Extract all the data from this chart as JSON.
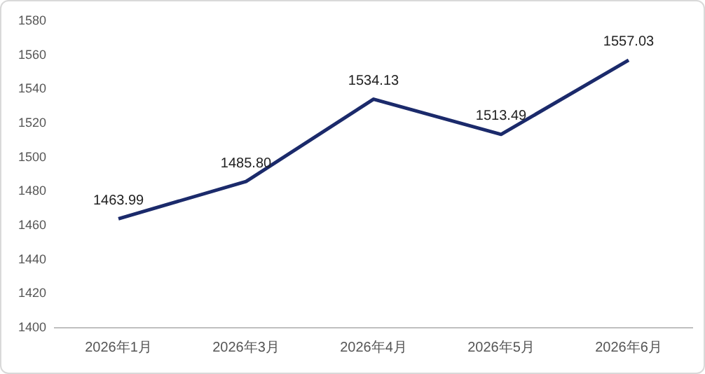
{
  "chart_data": {
    "type": "line",
    "categories": [
      "2026年1月",
      "2026年3月",
      "2026年4月",
      "2026年5月",
      "2026年6月"
    ],
    "series": [
      {
        "color": "#1b2a6b",
        "values": [
          1463.99,
          1485.8,
          1534.13,
          1513.49,
          1557.03
        ],
        "value_labels": [
          "1463.99",
          "1485.80",
          "1534.13",
          "1513.49",
          "1557.03"
        ]
      }
    ],
    "ylim": [
      1400,
      1580
    ],
    "yticks": [
      1400,
      1420,
      1440,
      1460,
      1480,
      1500,
      1520,
      1540,
      1560,
      1580
    ],
    "grid": false,
    "legend": false,
    "marker": "none",
    "line_style": "solid"
  }
}
